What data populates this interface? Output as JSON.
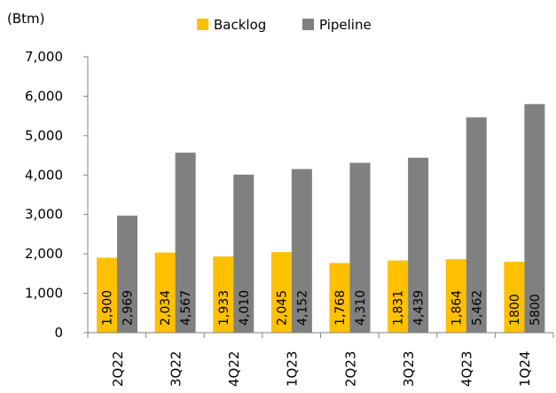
{
  "chart_data": {
    "type": "bar",
    "unit_label": "(Btm)",
    "categories": [
      "2Q22",
      "3Q22",
      "4Q22",
      "1Q23",
      "2Q23",
      "3Q23",
      "4Q23",
      "1Q24"
    ],
    "series": [
      {
        "name": "Backlog",
        "color": "#FFC000",
        "values": [
          1900,
          2034,
          1933,
          2045,
          1768,
          1831,
          1864,
          1800
        ],
        "labels": [
          "1,900",
          "2,034",
          "1,933",
          "2,045",
          "1,768",
          "1,831",
          "1,864",
          "1800"
        ]
      },
      {
        "name": "Pipeline",
        "color": "#808080",
        "values": [
          2969,
          4567,
          4010,
          4152,
          4310,
          4439,
          5462,
          5800
        ],
        "labels": [
          "2,969",
          "4,567",
          "4,010",
          "4,152",
          "4,310",
          "4,439",
          "5,462",
          "5800"
        ]
      }
    ],
    "ylim": [
      0,
      7000
    ],
    "yticks": [
      0,
      1000,
      2000,
      3000,
      4000,
      5000,
      6000,
      7000
    ],
    "ytick_labels": [
      "0",
      "1,000",
      "2,000",
      "3,000",
      "4,000",
      "5,000",
      "6,000",
      "7,000"
    ],
    "legend_position": "top",
    "grid": false
  }
}
